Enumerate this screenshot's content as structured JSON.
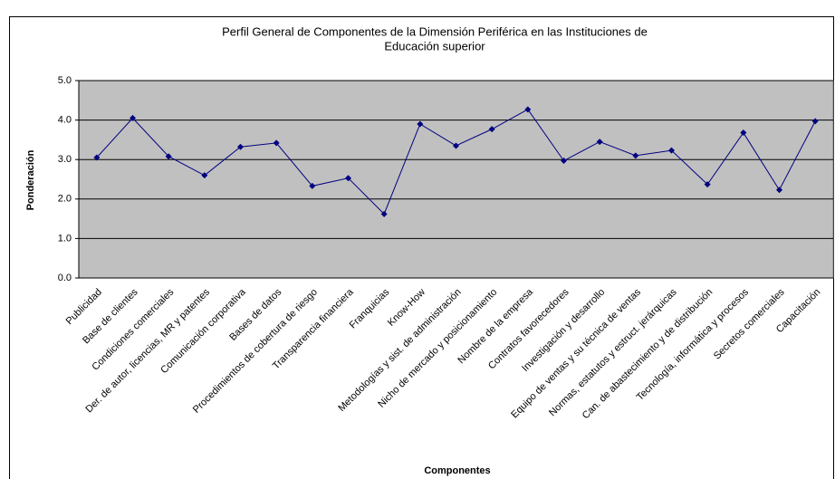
{
  "chart_data": {
    "type": "line",
    "title": [
      "Perfil General de Componentes de la Dimensión Periférica en las Instituciones de",
      "Educación superior"
    ],
    "y_label": "Ponderación",
    "x_label": "Componentes",
    "categories": [
      "Publicidad",
      "Base de clientes",
      "Condiciones comerciales",
      "Der. de autor, licencias, MR y patentes",
      "Comunicación corporativa",
      "Bases de datos",
      "Procedimientos de cobertura de riesgo",
      "Transparencia financiera",
      "Franquicias",
      "Know-How",
      "Metodologías y sist. de administración",
      "Nicho de mercado y posicionamiento",
      "Nombre de la empresa",
      "Contratos favorecedores",
      "Investigación y desarrollo",
      "Equipo de ventas y su técnica de ventas",
      "Normas, estatutos y estruct. jerárquicas",
      "Can. de abastecimiento y de distribución",
      "Tecnología, informática y procesos",
      "Secretos comerciales",
      "Capacitación"
    ],
    "series": [
      {
        "color": "#000080",
        "values": [
          3.05,
          4.05,
          3.08,
          2.6,
          3.32,
          3.42,
          2.33,
          2.53,
          1.62,
          3.9,
          3.35,
          3.77,
          4.27,
          2.97,
          3.45,
          3.1,
          3.23,
          2.37,
          3.68,
          2.23,
          3.97
        ]
      }
    ],
    "ylim": [
      0,
      5
    ],
    "yticks": [
      {
        "value": 0,
        "label": "0.0"
      },
      {
        "value": 1,
        "label": "1.0"
      },
      {
        "value": 2,
        "label": "2.0"
      },
      {
        "value": 3,
        "label": "3.0"
      },
      {
        "value": 4,
        "label": "4.0"
      },
      {
        "value": 5,
        "label": "5.0"
      }
    ],
    "grid": true,
    "plot_background": "#c0c0c0"
  }
}
